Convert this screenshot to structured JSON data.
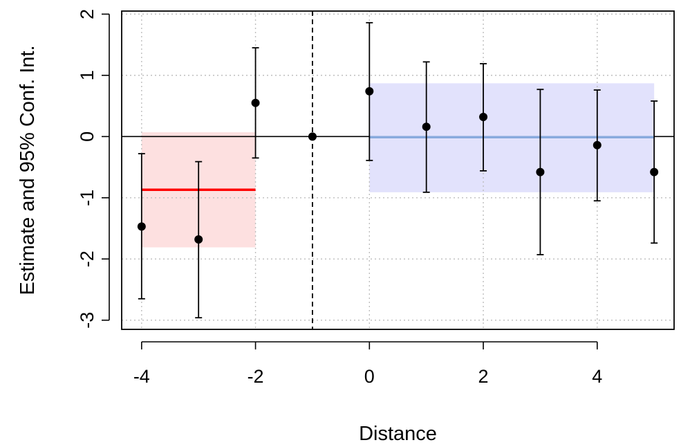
{
  "chart_data": {
    "type": "scatter",
    "title": "",
    "xlabel": "Distance",
    "ylabel": "Estimate and 95% Conf. Int.",
    "xlim": [
      -4.35,
      5.35
    ],
    "ylim": [
      -3.15,
      2.05
    ],
    "x_ticks": [
      -4,
      -2,
      0,
      2,
      4
    ],
    "y_ticks": [
      -3,
      -2,
      -1,
      0,
      1,
      2
    ],
    "x_tick_labels": [
      "-4",
      "-2",
      "0",
      "2",
      "4"
    ],
    "y_tick_labels": [
      "-3",
      "-2",
      "-1",
      "0",
      "1",
      "2"
    ],
    "grid": true,
    "reference_line_y": 0,
    "event_line_x": -1,
    "points": [
      {
        "x": -4,
        "estimate": -1.47,
        "lower": -2.65,
        "upper": -0.28
      },
      {
        "x": -3,
        "estimate": -1.68,
        "lower": -2.96,
        "upper": -0.41
      },
      {
        "x": -2,
        "estimate": 0.55,
        "lower": -0.35,
        "upper": 1.45
      },
      {
        "x": -1,
        "estimate": 0.0,
        "lower": null,
        "upper": null
      },
      {
        "x": 0,
        "estimate": 0.74,
        "lower": -0.39,
        "upper": 1.86
      },
      {
        "x": 1,
        "estimate": 0.16,
        "lower": -0.91,
        "upper": 1.22
      },
      {
        "x": 2,
        "estimate": 0.32,
        "lower": -0.56,
        "upper": 1.19
      },
      {
        "x": 3,
        "estimate": -0.58,
        "lower": -1.93,
        "upper": 0.77
      },
      {
        "x": 4,
        "estimate": -0.14,
        "lower": -1.05,
        "upper": 0.76
      },
      {
        "x": 5,
        "estimate": -0.58,
        "lower": -1.74,
        "upper": 0.58
      }
    ],
    "pooled": [
      {
        "x_start": -4,
        "x_end": -2,
        "estimate": -0.87,
        "lower": -1.81,
        "upper": 0.07,
        "line_color": "#ff0000",
        "band_color": "#fde0e0"
      },
      {
        "x_start": 0,
        "x_end": 5,
        "estimate": -0.01,
        "lower": -0.91,
        "upper": 0.87,
        "line_color": "#88aadd",
        "band_color": "#e2e2fc"
      }
    ]
  }
}
